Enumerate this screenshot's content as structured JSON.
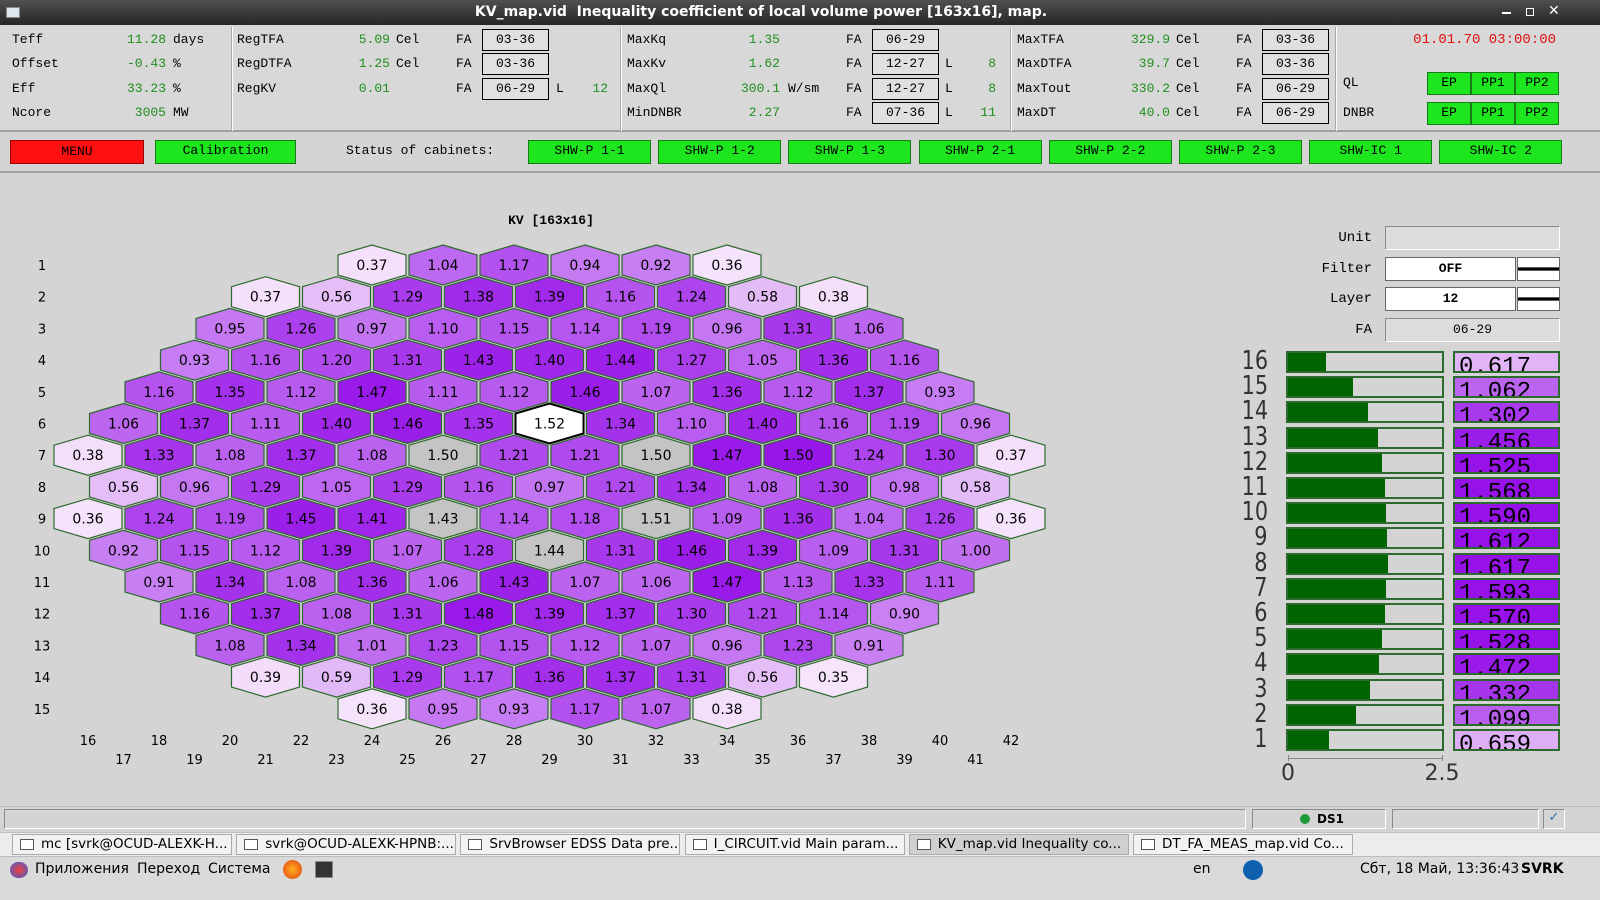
{
  "window_title": "KV_map.vid  Inequality coefficient of local volume power [163x16], map.",
  "labels": {
    "fa": "FA",
    "layer": "L"
  },
  "params": [
    [
      {
        "name": "Teff",
        "value": "11.28",
        "unit": "days"
      },
      {
        "name": "Offset",
        "value": "-0.43",
        "unit": "%"
      },
      {
        "name": "Eff",
        "value": "33.23",
        "unit": "%"
      },
      {
        "name": "Ncore",
        "value": "3005",
        "unit": "MW"
      }
    ],
    [
      {
        "name": "RegTFA",
        "value": "5.09",
        "unit": "Cel",
        "fa": "03-36"
      },
      {
        "name": "RegDTFA",
        "value": "1.25",
        "unit": "Cel",
        "fa": "03-36"
      },
      {
        "name": "RegKV",
        "value": "0.01",
        "fa": "06-29",
        "layer": "12"
      }
    ],
    [
      {
        "name": "MaxKq",
        "value": "1.35",
        "fa": "06-29"
      },
      {
        "name": "MaxKv",
        "value": "1.62",
        "fa": "12-27",
        "layer": "8"
      },
      {
        "name": "MaxQl",
        "value": "300.1",
        "unit": "W/sm",
        "fa": "12-27",
        "layer": "8"
      },
      {
        "name": "MinDNBR",
        "value": "2.27",
        "fa": "07-36",
        "layer": "11"
      }
    ],
    [
      {
        "name": "MaxTFA",
        "value": "329.9",
        "unit": "Cel",
        "fa": "03-36"
      },
      {
        "name": "MaxDTFA",
        "value": "39.7",
        "unit": "Cel",
        "fa": "03-36"
      },
      {
        "name": "MaxTout",
        "value": "330.2",
        "unit": "Cel",
        "fa": "06-29"
      },
      {
        "name": "MaxDT",
        "value": "40.0",
        "unit": "Cel",
        "fa": "06-29"
      }
    ]
  ],
  "datetime": "01.01.70 03:00:00",
  "protection": [
    {
      "name": "QL",
      "buttons": [
        "EP",
        "PP1",
        "PP2"
      ]
    },
    {
      "name": "DNBR",
      "buttons": [
        "EP",
        "PP1",
        "PP2"
      ]
    }
  ],
  "menu": "MENU",
  "calibration": "Calibration",
  "cabinets_label": "Status of cabinets:",
  "cabinets": [
    "SHW-P 1-1",
    "SHW-P 1-2",
    "SHW-P 1-3",
    "SHW-P 2-1",
    "SHW-P 2-2",
    "SHW-P 2-3",
    "SHW-IC 1",
    "SHW-IC 2"
  ],
  "map": {
    "title": "KV [163x16]",
    "row_labels": [
      1,
      2,
      3,
      4,
      5,
      6,
      7,
      8,
      9,
      10,
      11,
      12,
      13,
      14,
      15
    ],
    "column_labels": [
      16,
      17,
      18,
      19,
      20,
      21,
      22,
      23,
      24,
      25,
      26,
      27,
      28,
      29,
      30,
      31,
      32,
      33,
      34,
      35,
      36,
      37,
      38,
      39,
      40,
      41,
      42
    ],
    "rows": [
      [
        "0.37",
        "1.04",
        "1.17",
        "0.94",
        "0.92",
        "0.36"
      ],
      [
        "0.37",
        "0.56",
        "1.29",
        "1.38",
        "1.39",
        "1.16",
        "1.24",
        "0.58",
        "0.38"
      ],
      [
        "0.95",
        "1.26",
        "0.97",
        "1.10",
        "1.15",
        "1.14",
        "1.19",
        "0.96",
        "1.31",
        "1.06"
      ],
      [
        "0.93",
        "1.16",
        "1.20",
        "1.31",
        "1.43",
        "1.40",
        "1.44",
        "1.27",
        "1.05",
        "1.36",
        "1.16"
      ],
      [
        "1.16",
        "1.35",
        "1.12",
        "1.47",
        "1.11",
        "1.12",
        "1.46",
        "1.07",
        "1.36",
        "1.12",
        "1.37",
        "0.93"
      ],
      [
        "1.06",
        "1.37",
        "1.11",
        "1.40",
        "1.46",
        "1.35",
        "1.52",
        "1.34",
        "1.10",
        "1.40",
        "1.16",
        "1.19",
        "0.96"
      ],
      [
        "0.38",
        "1.33",
        "1.08",
        "1.37",
        "1.08",
        "1.50",
        "1.21",
        "1.21",
        "1.50",
        "1.47",
        "1.50",
        "1.24",
        "1.30",
        "0.37"
      ],
      [
        "0.56",
        "0.96",
        "1.29",
        "1.05",
        "1.29",
        "1.16",
        "0.97",
        "1.21",
        "1.34",
        "1.08",
        "1.30",
        "0.98",
        "0.58"
      ],
      [
        "0.36",
        "1.24",
        "1.19",
        "1.45",
        "1.41",
        "1.43",
        "1.14",
        "1.18",
        "1.51",
        "1.09",
        "1.36",
        "1.04",
        "1.26",
        "0.36"
      ],
      [
        "0.92",
        "1.15",
        "1.12",
        "1.39",
        "1.07",
        "1.28",
        "1.44",
        "1.31",
        "1.46",
        "1.39",
        "1.09",
        "1.31",
        "1.00"
      ],
      [
        "0.91",
        "1.34",
        "1.08",
        "1.36",
        "1.06",
        "1.43",
        "1.07",
        "1.06",
        "1.47",
        "1.13",
        "1.33",
        "1.11"
      ],
      [
        "1.16",
        "1.37",
        "1.08",
        "1.31",
        "1.48",
        "1.39",
        "1.37",
        "1.30",
        "1.21",
        "1.14",
        "0.90"
      ],
      [
        "1.08",
        "1.34",
        "1.01",
        "1.23",
        "1.15",
        "1.12",
        "1.07",
        "0.96",
        "1.23",
        "0.91"
      ],
      [
        "0.39",
        "0.59",
        "1.29",
        "1.17",
        "1.36",
        "1.37",
        "1.31",
        "0.56",
        "0.35"
      ],
      [
        "0.36",
        "0.95",
        "0.93",
        "1.17",
        "1.07",
        "0.38"
      ]
    ]
  },
  "form": {
    "unit_label": "Unit",
    "filter_label": "Filter",
    "filter": "OFF",
    "layer_label": "Layer",
    "layer": "12",
    "fa_label": "FA",
    "fa": "06-29"
  },
  "layer_chart": {
    "layers": [
      16,
      15,
      14,
      13,
      12,
      11,
      10,
      9,
      8,
      7,
      6,
      5,
      4,
      3,
      2,
      1
    ],
    "values": [
      0.617,
      1.062,
      1.302,
      1.456,
      1.525,
      1.568,
      1.59,
      1.612,
      1.617,
      1.593,
      1.57,
      1.528,
      1.472,
      1.332,
      1.099,
      0.659
    ],
    "value_labels": [
      "0.617",
      "1.062",
      "1.302",
      "1.456",
      "1.525",
      "1.568",
      "1.590",
      "1.612",
      "1.617",
      "1.593",
      "1.570",
      "1.528",
      "1.472",
      "1.332",
      "1.099",
      "0.659"
    ],
    "color": "#006400",
    "xlim": [
      0,
      2.5
    ],
    "xticks": [
      0,
      2.5
    ]
  },
  "status": {
    "server": "DS1"
  },
  "taskbar": [
    "mc [svrk@OCUD-ALEXK-H...",
    "svrk@OCUD-ALEXK-HPNB:...",
    "SrvBrowser EDSS Data pre...",
    "I_CIRCUIT.vid  Main param...",
    "KV_map.vid  Inequality co...",
    "DT_FA_MEAS_map.vid  Co..."
  ],
  "panel": {
    "menus": [
      "Приложения",
      "Переход",
      "Система"
    ],
    "keyboard": "en",
    "clock": "Сбт, 18 Май, 13:36:43",
    "user": "SVRK"
  }
}
